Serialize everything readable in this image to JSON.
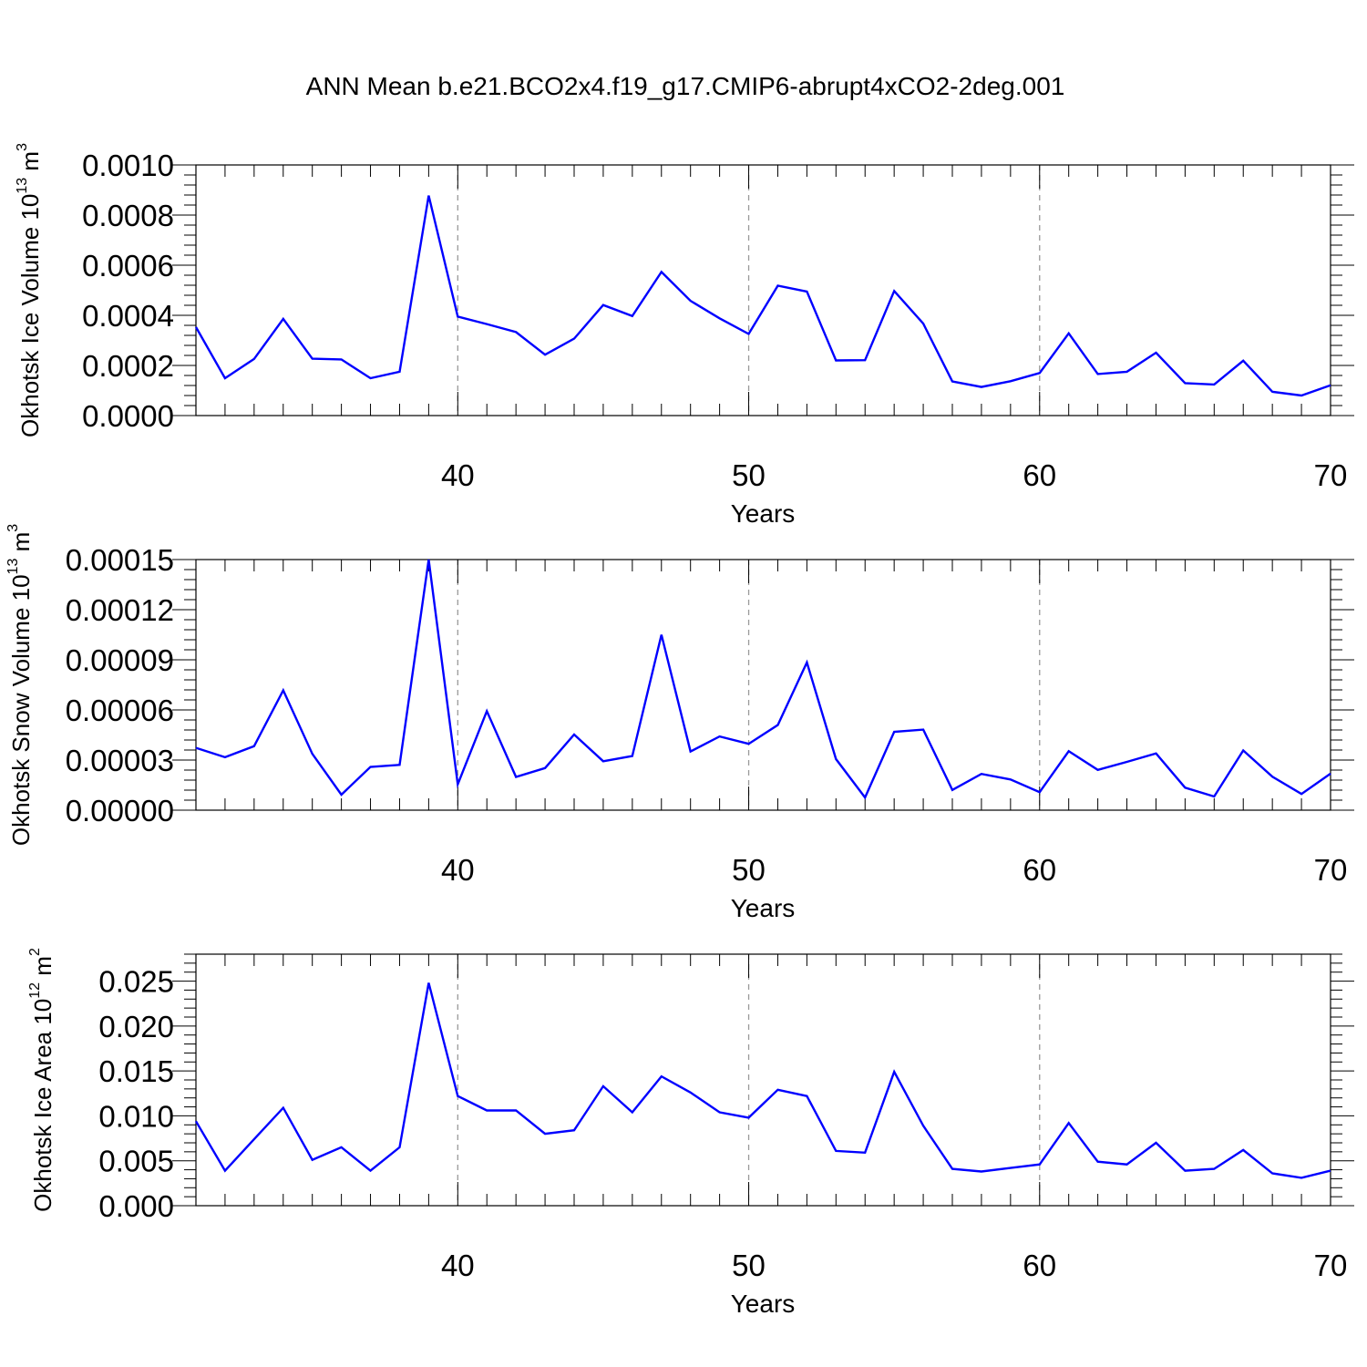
{
  "title": "ANN Mean b.e21.BCO2x4.f19_g17.CMIP6-abrupt4xCO2-2deg.001",
  "colors": {
    "line": "#0000ff",
    "axis": "#000000",
    "grid": "#999999",
    "background": "#ffffff"
  },
  "chart_data": [
    {
      "type": "line",
      "ylabel": {
        "text": "Okhotsk Ice Volume 10",
        "sup": "13",
        "unit": " m",
        "unit_sup": "3"
      },
      "xlabel": "Years",
      "xlim": [
        31,
        70
      ],
      "ylim": [
        0,
        0.001
      ],
      "xticks": [
        40,
        50,
        60,
        70
      ],
      "xtick_labels": [
        "40",
        "50",
        "60",
        "70"
      ],
      "yticks": [
        0,
        0.0002,
        0.0004,
        0.0006,
        0.0008,
        0.001
      ],
      "ytick_labels": [
        "0.0000",
        "0.0002",
        "0.0004",
        "0.0006",
        "0.0008",
        "0.0010"
      ],
      "grid": "vertical dashed at major x ticks",
      "x": [
        31,
        32,
        33,
        34,
        35,
        36,
        37,
        38,
        39,
        40,
        41,
        42,
        43,
        44,
        45,
        46,
        47,
        48,
        49,
        50,
        51,
        52,
        53,
        54,
        55,
        56,
        57,
        58,
        59,
        60,
        61,
        62,
        63,
        64,
        65,
        66,
        67,
        68,
        69,
        70
      ],
      "values": [
        0.000353,
        0.000149,
        0.000226,
        0.000386,
        0.000227,
        0.000224,
        0.000149,
        0.000175,
        0.000878,
        0.000395,
        0.000365,
        0.000333,
        0.000243,
        0.000307,
        0.000441,
        0.000397,
        0.000573,
        0.000458,
        0.000388,
        0.000326,
        0.000518,
        0.000495,
        0.00022,
        0.000221,
        0.000497,
        0.000367,
        0.000136,
        0.000114,
        0.000137,
        0.00017,
        0.000328,
        0.000166,
        0.000175,
        0.000251,
        0.000129,
        0.000124,
        0.000219,
        9.5e-05,
        8e-05,
        0.000121
      ]
    },
    {
      "type": "line",
      "ylabel": {
        "text": "Okhotsk Snow Volume 10",
        "sup": "13",
        "unit": " m",
        "unit_sup": "3"
      },
      "xlabel": "Years",
      "xlim": [
        31,
        70
      ],
      "ylim": [
        0,
        0.00015
      ],
      "xticks": [
        40,
        50,
        60,
        70
      ],
      "xtick_labels": [
        "40",
        "50",
        "60",
        "70"
      ],
      "yticks": [
        0,
        3e-05,
        6e-05,
        9e-05,
        0.00012,
        0.00015
      ],
      "ytick_labels": [
        "0.00000",
        "0.00003",
        "0.00006",
        "0.00009",
        "0.00012",
        "0.00015"
      ],
      "grid": "vertical dashed at major x ticks",
      "x": [
        31,
        32,
        33,
        34,
        35,
        36,
        37,
        38,
        39,
        40,
        41,
        42,
        43,
        44,
        45,
        46,
        47,
        48,
        49,
        50,
        51,
        52,
        53,
        54,
        55,
        56,
        57,
        58,
        59,
        60,
        61,
        62,
        63,
        64,
        65,
        66,
        67,
        68,
        69,
        70
      ],
      "values": [
        3.73e-05,
        3.17e-05,
        3.83e-05,
        7.17e-05,
        3.37e-05,
        9.3e-06,
        2.59e-05,
        2.71e-05,
        0.00015,
        1.55e-05,
        5.93e-05,
        1.99e-05,
        2.52e-05,
        4.53e-05,
        2.93e-05,
        3.24e-05,
        0.000105,
        3.51e-05,
        4.41e-05,
        3.97e-05,
        5.1e-05,
        8.84e-05,
        3.06e-05,
        7.6e-06,
        4.69e-05,
        4.82e-05,
        1.21e-05,
        2.17e-05,
        1.84e-05,
        1.08e-05,
        3.53e-05,
        2.41e-05,
        2.89e-05,
        3.4e-05,
        1.35e-05,
        8.2e-06,
        3.57e-05,
        2e-05,
        9.7e-06,
        2.19e-05
      ]
    },
    {
      "type": "line",
      "ylabel": {
        "text": "Okhotsk Ice Area 10",
        "sup": "12",
        "unit": " m",
        "unit_sup": "2"
      },
      "xlabel": "Years",
      "xlim": [
        31,
        70
      ],
      "ylim": [
        0,
        0.028
      ],
      "xticks": [
        40,
        50,
        60,
        70
      ],
      "xtick_labels": [
        "40",
        "50",
        "60",
        "70"
      ],
      "yticks": [
        0,
        0.005,
        0.01,
        0.015,
        0.02,
        0.025
      ],
      "ytick_labels": [
        "0.000",
        "0.005",
        "0.010",
        "0.015",
        "0.020",
        "0.025"
      ],
      "grid": "vertical dashed at major x ticks",
      "x": [
        31,
        32,
        33,
        34,
        35,
        36,
        37,
        38,
        39,
        40,
        41,
        42,
        43,
        44,
        45,
        46,
        47,
        48,
        49,
        50,
        51,
        52,
        53,
        54,
        55,
        56,
        57,
        58,
        59,
        60,
        61,
        62,
        63,
        64,
        65,
        66,
        67,
        68,
        69,
        70
      ],
      "values": [
        0.0094,
        0.0039,
        0.0074,
        0.0109,
        0.0051,
        0.0065,
        0.0039,
        0.0065,
        0.0248,
        0.0122,
        0.0106,
        0.0106,
        0.008,
        0.0084,
        0.0133,
        0.0104,
        0.0144,
        0.0126,
        0.0104,
        0.0098,
        0.0129,
        0.0122,
        0.0061,
        0.0059,
        0.0149,
        0.0089,
        0.0041,
        0.0038,
        0.0042,
        0.0046,
        0.0092,
        0.0049,
        0.0046,
        0.007,
        0.0039,
        0.0041,
        0.0062,
        0.0036,
        0.0031,
        0.0039
      ]
    }
  ]
}
